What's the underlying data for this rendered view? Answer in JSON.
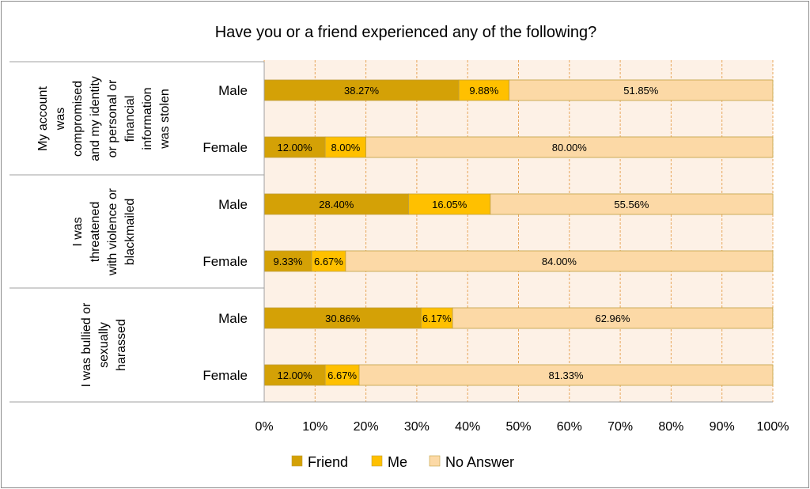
{
  "chart_data": {
    "type": "bar",
    "orientation": "horizontal",
    "stacked": "percent",
    "title": "Have you or a friend experienced any of the following?",
    "xlabel": "",
    "ylabel": "",
    "xlim": [
      0,
      100
    ],
    "x_ticks": [
      "0%",
      "10%",
      "20%",
      "30%",
      "40%",
      "50%",
      "60%",
      "70%",
      "80%",
      "90%",
      "100%"
    ],
    "grid": true,
    "legend_position": "bottom",
    "groups": [
      {
        "label_lines": [
          "My account",
          "was",
          "compromised",
          "and my identity",
          "or personal or",
          "financial",
          "information",
          "was stolen"
        ],
        "rows": [
          {
            "label": "Male",
            "values": [
              38.27,
              9.88,
              51.85
            ],
            "data_labels": [
              "38.27%",
              "9.88%",
              "51.85%"
            ]
          },
          {
            "label": "Female",
            "values": [
              12.0,
              8.0,
              80.0
            ],
            "data_labels": [
              "12.00%",
              "8.00%",
              "80.00%"
            ]
          }
        ]
      },
      {
        "label_lines": [
          "I was",
          "threatened",
          "with violence or",
          "blackmailed"
        ],
        "rows": [
          {
            "label": "Male",
            "values": [
              28.4,
              16.05,
              55.56
            ],
            "data_labels": [
              "28.40%",
              "16.05%",
              "55.56%"
            ]
          },
          {
            "label": "Female",
            "values": [
              9.33,
              6.67,
              84.0
            ],
            "data_labels": [
              "9.33%",
              "6.67%",
              "84.00%"
            ]
          }
        ]
      },
      {
        "label_lines": [
          "I was bullied or",
          "sexually",
          "harassed"
        ],
        "rows": [
          {
            "label": "Male",
            "values": [
              30.86,
              6.17,
              62.96
            ],
            "data_labels": [
              "30.86%",
              "6.17%",
              "62.96%"
            ]
          },
          {
            "label": "Female",
            "values": [
              12.0,
              6.67,
              81.33
            ],
            "data_labels": [
              "12.00%",
              "6.67%",
              "81.33%"
            ]
          }
        ]
      }
    ],
    "series": [
      {
        "name": "Friend",
        "color": "#D4A106"
      },
      {
        "name": "Me",
        "color": "#FFC000"
      },
      {
        "name": "No Answer",
        "color": "#FCD9A6"
      }
    ],
    "plot_background": "#FDF1E6",
    "gridline_color": "#E7A65B",
    "bar_border_color": "#C0A040"
  }
}
